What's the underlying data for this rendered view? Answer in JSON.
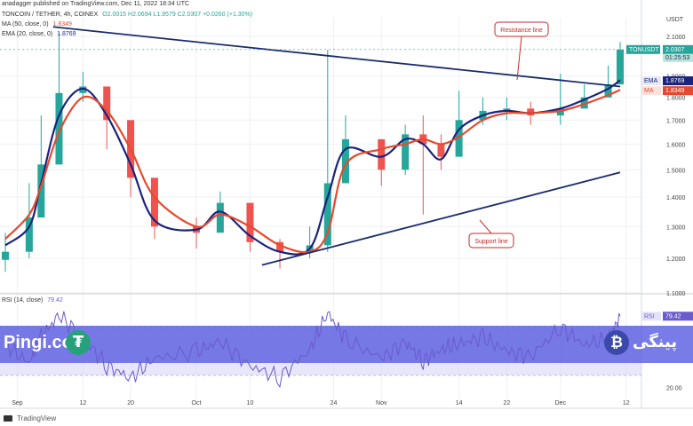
{
  "header": {
    "published": "anadagger published on TradingView.com, Dec 11, 2022 18:34 UTC",
    "symbol_line": "TONCOIN / TETHER, 4h, COINEX",
    "ohlc": "O2.0015  H2.0694  L1.9579  C2.0307  +0.0260 (+1.30%)",
    "ma": {
      "label": "MA (50, close, 0)",
      "value": "1.8349"
    },
    "ema": {
      "label": "EMA (20, close, 0)",
      "value": "1.8769"
    },
    "rsi": {
      "label": "RSI (14, close)",
      "value": "79.42"
    }
  },
  "footer": {
    "tradingview": "TradingView"
  },
  "brand": {
    "left": "Pingi.co",
    "right": "پینگی"
  },
  "colors": {
    "up": "#26a69a",
    "down": "#ef5350",
    "ema": "#1a237e",
    "ma": "#e64a2e",
    "trendline": "#1a2b6e",
    "annotation": "#c62828",
    "rsi_line": "#6a5acd",
    "rsi_band": "#d9d6f5",
    "price_tag": "#26a69a"
  },
  "chart_data": [
    {
      "type": "candlestick",
      "title": "TONCOIN / TETHER, 4h, COINEX",
      "ylabel": "USDT",
      "y_scale": "log",
      "ylim": [
        1.1,
        2.2
      ],
      "y_ticks": [
        "2.1000",
        "1.9000",
        "1.8000",
        "1.7000",
        "1.6000",
        "1.5000",
        "1.4000",
        "1.3000",
        "1.2000",
        "1.1000"
      ],
      "x_ticks": [
        "Sep",
        "12",
        "20",
        "Oct",
        "10",
        "24",
        "Nov",
        "14",
        "22",
        "Dec",
        "12"
      ],
      "x": [
        "Aug 30",
        "Sep 3",
        "Sep 5",
        "Sep 8",
        "Sep 12",
        "Sep 16",
        "Sep 20",
        "Sep 24",
        "Oct 1",
        "Oct 5",
        "Oct 10",
        "Oct 15",
        "Oct 20",
        "Oct 23",
        "Oct 26",
        "Nov 1",
        "Nov 5",
        "Nov 8",
        "Nov 11",
        "Nov 14",
        "Nov 18",
        "Nov 22",
        "Nov 26",
        "Dec 1",
        "Dec 5",
        "Dec 9",
        "Dec 11"
      ],
      "close": [
        1.22,
        1.33,
        1.52,
        1.82,
        1.85,
        1.7,
        1.47,
        1.3,
        1.28,
        1.38,
        1.25,
        1.22,
        1.24,
        1.45,
        1.62,
        1.5,
        1.64,
        1.6,
        1.55,
        1.7,
        1.74,
        1.75,
        1.72,
        1.75,
        1.8,
        1.86,
        2.03
      ],
      "high": [
        1.28,
        1.45,
        1.72,
        2.12,
        1.92,
        1.78,
        1.55,
        1.38,
        1.33,
        1.42,
        1.32,
        1.26,
        1.3,
        2.03,
        1.72,
        1.6,
        1.68,
        1.72,
        1.64,
        1.83,
        1.8,
        1.8,
        1.78,
        1.91,
        1.86,
        1.95,
        2.07
      ],
      "low": [
        1.16,
        1.2,
        1.46,
        1.6,
        1.78,
        1.58,
        1.4,
        1.26,
        1.23,
        1.32,
        1.22,
        1.17,
        1.2,
        1.22,
        1.5,
        1.44,
        1.48,
        1.34,
        1.5,
        1.58,
        1.68,
        1.7,
        1.68,
        1.68,
        1.76,
        1.8,
        1.86
      ],
      "series": [
        {
          "name": "EMA (20, close, 0)",
          "values": [
            1.24,
            1.3,
            1.45,
            1.72,
            1.84,
            1.72,
            1.52,
            1.32,
            1.29,
            1.35,
            1.27,
            1.22,
            1.23,
            1.4,
            1.58,
            1.55,
            1.62,
            1.6,
            1.54,
            1.66,
            1.72,
            1.74,
            1.73,
            1.75,
            1.79,
            1.84,
            1.88
          ]
        },
        {
          "name": "MA (50, close, 0)",
          "values": [
            1.26,
            1.34,
            1.44,
            1.65,
            1.8,
            1.74,
            1.58,
            1.4,
            1.3,
            1.34,
            1.3,
            1.24,
            1.22,
            1.28,
            1.52,
            1.58,
            1.6,
            1.62,
            1.6,
            1.63,
            1.7,
            1.73,
            1.73,
            1.74,
            1.77,
            1.81,
            1.835
          ]
        }
      ],
      "last_price": "2.0307",
      "last_price_label": "TONUSDT",
      "countdown": "01:25:53",
      "annotations": [
        {
          "label": "Resistance line",
          "type": "trendline",
          "from": [
            "Sep 7",
            2.15
          ],
          "to": [
            "Dec 11",
            1.85
          ]
        },
        {
          "label": "Support line",
          "type": "trendline",
          "from": [
            "Oct 12",
            1.18
          ],
          "to": [
            "Dec 11",
            1.49
          ]
        }
      ]
    },
    {
      "type": "line",
      "title": "RSI (14, close)",
      "ylim": [
        10,
        90
      ],
      "y_ticks": [
        "20.00"
      ],
      "x": [
        "Aug 30",
        "Sep 3",
        "Sep 5",
        "Sep 8",
        "Sep 12",
        "Sep 16",
        "Sep 20",
        "Sep 24",
        "Oct 1",
        "Oct 5",
        "Oct 10",
        "Oct 15",
        "Oct 20",
        "Oct 23",
        "Oct 26",
        "Nov 1",
        "Nov 5",
        "Nov 8",
        "Nov 11",
        "Nov 14",
        "Nov 18",
        "Nov 22",
        "Nov 26",
        "Dec 1",
        "Dec 5",
        "Dec 9",
        "Dec 11"
      ],
      "values": [
        56,
        40,
        62,
        80,
        62,
        38,
        28,
        44,
        50,
        58,
        38,
        28,
        52,
        82,
        60,
        44,
        58,
        42,
        52,
        56,
        62,
        50,
        46,
        70,
        56,
        60,
        79.42
      ],
      "bands": [
        30,
        70
      ]
    }
  ]
}
